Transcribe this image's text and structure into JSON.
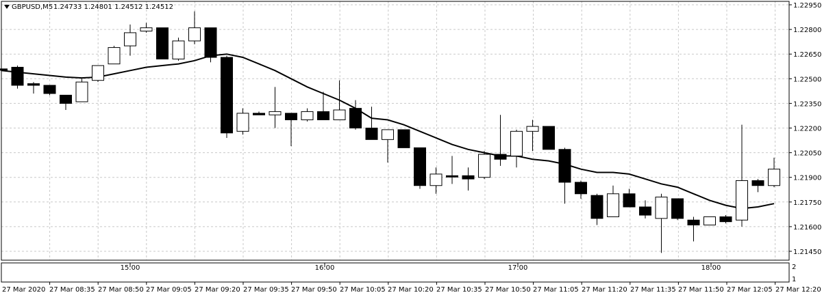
{
  "header": {
    "symbol_label": "GBPUSD,M5",
    "ohlc_label": "1.24733 1.24801 1.24512 1.24512"
  },
  "price_axis": [
    "1.22950",
    "1.22800",
    "1.22650",
    "1.22500",
    "1.22350",
    "1.22200",
    "1.22050",
    "1.21900",
    "1.21750",
    "1.21600",
    "1.21450"
  ],
  "sub_axis": [
    "2",
    "1"
  ],
  "time_markers": [
    "15:00",
    "16:00",
    "17:00",
    "18:00"
  ],
  "date_axis": [
    "27 Mar 2020",
    "27 Mar 08:35",
    "27 Mar 08:50",
    "27 Mar 09:05",
    "27 Mar 09:20",
    "27 Mar 09:35",
    "27 Mar 09:50",
    "27 Mar 10:05",
    "27 Mar 10:20",
    "27 Mar 10:35",
    "27 Mar 10:50",
    "27 Mar 11:05",
    "27 Mar 11:20",
    "27 Mar 11:35",
    "27 Mar 11:50",
    "27 Mar 12:05",
    "27 Mar 12:20"
  ],
  "chart_data": {
    "type": "candlestick",
    "symbol": "GBPUSD",
    "timeframe": "M5",
    "ylim": [
      1.214,
      1.23
    ],
    "grid": true,
    "candles": [
      {
        "o": 1.2256,
        "h": 1.226,
        "l": 1.2248,
        "c": 1.2256
      },
      {
        "o": 1.2257,
        "h": 1.2258,
        "l": 1.2244,
        "c": 1.2246
      },
      {
        "o": 1.2247,
        "h": 1.2248,
        "l": 1.2241,
        "c": 1.2246
      },
      {
        "o": 1.2246,
        "h": 1.2246,
        "l": 1.224,
        "c": 1.2241
      },
      {
        "o": 1.224,
        "h": 1.224,
        "l": 1.2231,
        "c": 1.2235
      },
      {
        "o": 1.2236,
        "h": 1.225,
        "l": 1.2236,
        "c": 1.2248
      },
      {
        "o": 1.2249,
        "h": 1.2258,
        "l": 1.2248,
        "c": 1.2258
      },
      {
        "o": 1.2259,
        "h": 1.227,
        "l": 1.2259,
        "c": 1.2269
      },
      {
        "o": 1.227,
        "h": 1.2283,
        "l": 1.2264,
        "c": 1.2278
      },
      {
        "o": 1.2279,
        "h": 1.2284,
        "l": 1.2278,
        "c": 1.2281
      },
      {
        "o": 1.2281,
        "h": 1.2281,
        "l": 1.2262,
        "c": 1.2262
      },
      {
        "o": 1.2262,
        "h": 1.2275,
        "l": 1.2261,
        "c": 1.2273
      },
      {
        "o": 1.2273,
        "h": 1.2291,
        "l": 1.2271,
        "c": 1.2281
      },
      {
        "o": 1.2281,
        "h": 1.2281,
        "l": 1.226,
        "c": 1.2263
      },
      {
        "o": 1.2263,
        "h": 1.2264,
        "l": 1.2214,
        "c": 1.2217
      },
      {
        "o": 1.2218,
        "h": 1.2232,
        "l": 1.2216,
        "c": 1.2229
      },
      {
        "o": 1.2229,
        "h": 1.223,
        "l": 1.2228,
        "c": 1.2228
      },
      {
        "o": 1.2228,
        "h": 1.2245,
        "l": 1.222,
        "c": 1.223
      },
      {
        "o": 1.2229,
        "h": 1.2229,
        "l": 1.2209,
        "c": 1.2225
      },
      {
        "o": 1.2225,
        "h": 1.2232,
        "l": 1.2224,
        "c": 1.223
      },
      {
        "o": 1.223,
        "h": 1.2242,
        "l": 1.2225,
        "c": 1.2225
      },
      {
        "o": 1.2225,
        "h": 1.2249,
        "l": 1.2225,
        "c": 1.2231
      },
      {
        "o": 1.2232,
        "h": 1.2237,
        "l": 1.2219,
        "c": 1.222
      },
      {
        "o": 1.222,
        "h": 1.2233,
        "l": 1.2213,
        "c": 1.2213
      },
      {
        "o": 1.2213,
        "h": 1.2219,
        "l": 1.2199,
        "c": 1.2219
      },
      {
        "o": 1.2219,
        "h": 1.2219,
        "l": 1.2208,
        "c": 1.2208
      },
      {
        "o": 1.2208,
        "h": 1.2208,
        "l": 1.2183,
        "c": 1.2185
      },
      {
        "o": 1.2185,
        "h": 1.2196,
        "l": 1.218,
        "c": 1.2192
      },
      {
        "o": 1.2191,
        "h": 1.2203,
        "l": 1.2186,
        "c": 1.2191
      },
      {
        "o": 1.2191,
        "h": 1.2196,
        "l": 1.2182,
        "c": 1.2189
      },
      {
        "o": 1.219,
        "h": 1.2206,
        "l": 1.2189,
        "c": 1.2204
      },
      {
        "o": 1.2204,
        "h": 1.2228,
        "l": 1.2197,
        "c": 1.2201
      },
      {
        "o": 1.2203,
        "h": 1.2219,
        "l": 1.2196,
        "c": 1.2218
      },
      {
        "o": 1.2218,
        "h": 1.2225,
        "l": 1.2206,
        "c": 1.2221
      },
      {
        "o": 1.2221,
        "h": 1.2221,
        "l": 1.2207,
        "c": 1.2207
      },
      {
        "o": 1.2207,
        "h": 1.2208,
        "l": 1.2174,
        "c": 1.2187
      },
      {
        "o": 1.2187,
        "h": 1.2188,
        "l": 1.2177,
        "c": 1.218
      },
      {
        "o": 1.2179,
        "h": 1.218,
        "l": 1.2161,
        "c": 1.2165
      },
      {
        "o": 1.2166,
        "h": 1.2185,
        "l": 1.2166,
        "c": 1.218
      },
      {
        "o": 1.218,
        "h": 1.2183,
        "l": 1.2172,
        "c": 1.2172
      },
      {
        "o": 1.2172,
        "h": 1.2176,
        "l": 1.2165,
        "c": 1.2167
      },
      {
        "o": 1.2165,
        "h": 1.218,
        "l": 1.2144,
        "c": 1.2178
      },
      {
        "o": 1.2177,
        "h": 1.2177,
        "l": 1.2164,
        "c": 1.2165
      },
      {
        "o": 1.2164,
        "h": 1.2166,
        "l": 1.2151,
        "c": 1.2161
      },
      {
        "o": 1.2161,
        "h": 1.2166,
        "l": 1.2161,
        "c": 1.2166
      },
      {
        "o": 1.2166,
        "h": 1.2167,
        "l": 1.2162,
        "c": 1.2163
      },
      {
        "o": 1.2164,
        "h": 1.2222,
        "l": 1.216,
        "c": 1.2188
      },
      {
        "o": 1.2188,
        "h": 1.2189,
        "l": 1.2181,
        "c": 1.2185
      },
      {
        "o": 1.2185,
        "h": 1.2202,
        "l": 1.2184,
        "c": 1.2195
      }
    ],
    "ma": [
      1.2255,
      1.2254,
      1.2253,
      1.2252,
      1.2251,
      1.22505,
      1.2251,
      1.2253,
      1.2255,
      1.2257,
      1.2258,
      1.2259,
      1.2261,
      1.2264,
      1.2265,
      1.2263,
      1.2259,
      1.2255,
      1.225,
      1.2245,
      1.2241,
      1.2237,
      1.2232,
      1.2226,
      1.2225,
      1.2222,
      1.2218,
      1.2214,
      1.221,
      1.2207,
      1.2205,
      1.2203,
      1.2203,
      1.2201,
      1.22,
      1.2198,
      1.2195,
      1.2193,
      1.2193,
      1.2192,
      1.2189,
      1.2186,
      1.2184,
      1.218,
      1.2176,
      1.2173,
      1.2171,
      1.2172,
      1.2174
    ]
  }
}
